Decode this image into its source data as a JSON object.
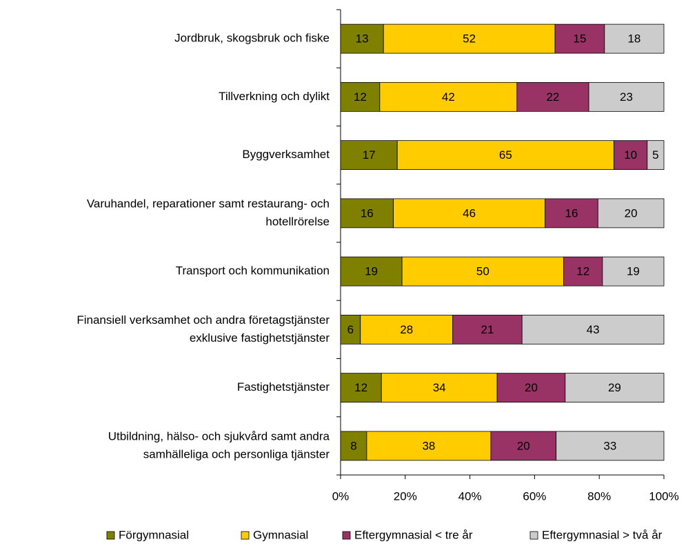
{
  "chart_data": {
    "type": "bar",
    "orientation": "horizontal",
    "stacked": "percent",
    "categories": [
      "Jordbruk, skogsbruk och fiske",
      "Tillverkning och dylikt",
      "Byggverksamhet",
      [
        "Varuhandel, reparationer samt restaurang- och",
        "hotellrörelse"
      ],
      "Transport och kommunikation",
      [
        "Finansiell verksamhet och andra företagstjänster",
        "exklusive fastighetstjänster"
      ],
      "Fastighetstjänster",
      [
        "Utbildning, hälso- och sjukvård samt andra",
        "samhälleliga och personliga tjänster"
      ]
    ],
    "series": [
      {
        "name": "Förgymnasial",
        "color": "#808000",
        "values": [
          13,
          12,
          17,
          16,
          19,
          6,
          12,
          8
        ]
      },
      {
        "name": "Gymnasial",
        "color": "#ffcc00",
        "values": [
          52,
          42,
          65,
          46,
          50,
          28,
          34,
          38
        ]
      },
      {
        "name": "Eftergymnasial < tre år",
        "color": "#993366",
        "values": [
          15,
          22,
          10,
          16,
          12,
          21,
          20,
          20
        ]
      },
      {
        "name": "Eftergymnasial > två år",
        "color": "#cccccc",
        "values": [
          18,
          23,
          5,
          20,
          19,
          43,
          29,
          33
        ]
      }
    ],
    "xlim": [
      0,
      100
    ],
    "xticks": [
      {
        "value": 0,
        "label": "0%"
      },
      {
        "value": 20,
        "label": "20%"
      },
      {
        "value": 40,
        "label": "40%"
      },
      {
        "value": 60,
        "label": "60%"
      },
      {
        "value": 80,
        "label": "80%"
      },
      {
        "value": 100,
        "label": "100%"
      }
    ],
    "legend": "bottom"
  }
}
